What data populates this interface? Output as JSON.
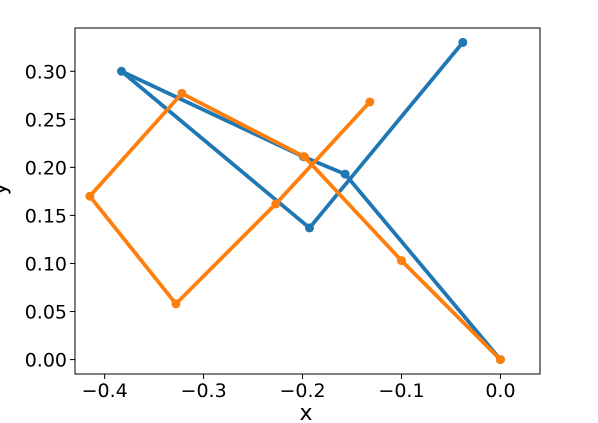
{
  "chart_data": {
    "type": "line",
    "title": "",
    "xlabel": "x",
    "ylabel": "y",
    "xlim": [
      -0.43,
      0.04
    ],
    "ylim": [
      -0.015,
      0.345
    ],
    "grid": false,
    "legend": "none",
    "x_ticks": [
      {
        "value": -0.4,
        "label": "−0.4"
      },
      {
        "value": -0.3,
        "label": "−0.3"
      },
      {
        "value": -0.2,
        "label": "−0.2"
      },
      {
        "value": -0.1,
        "label": "−0.1"
      },
      {
        "value": 0.0,
        "label": "0.0"
      }
    ],
    "y_ticks": [
      {
        "value": 0.0,
        "label": "0.00"
      },
      {
        "value": 0.05,
        "label": "0.05"
      },
      {
        "value": 0.1,
        "label": "0.10"
      },
      {
        "value": 0.15,
        "label": "0.15"
      },
      {
        "value": 0.2,
        "label": "0.20"
      },
      {
        "value": 0.25,
        "label": "0.25"
      },
      {
        "value": 0.3,
        "label": "0.30"
      }
    ],
    "series": [
      {
        "color": "#1f77b4",
        "points": [
          {
            "x": -0.038,
            "y": 0.33
          },
          {
            "x": -0.193,
            "y": 0.137
          },
          {
            "x": -0.383,
            "y": 0.3
          },
          {
            "x": -0.199,
            "y": 0.211
          },
          {
            "x": -0.157,
            "y": 0.193
          },
          {
            "x": 0.0,
            "y": 0.0
          }
        ]
      },
      {
        "color": "#ff7f0e",
        "points": [
          {
            "x": -0.132,
            "y": 0.268
          },
          {
            "x": -0.227,
            "y": 0.162
          },
          {
            "x": -0.328,
            "y": 0.058
          },
          {
            "x": -0.415,
            "y": 0.17
          },
          {
            "x": -0.322,
            "y": 0.277
          },
          {
            "x": -0.198,
            "y": 0.211
          },
          {
            "x": -0.1,
            "y": 0.103
          },
          {
            "x": 0.0,
            "y": 0.0
          }
        ]
      }
    ]
  }
}
